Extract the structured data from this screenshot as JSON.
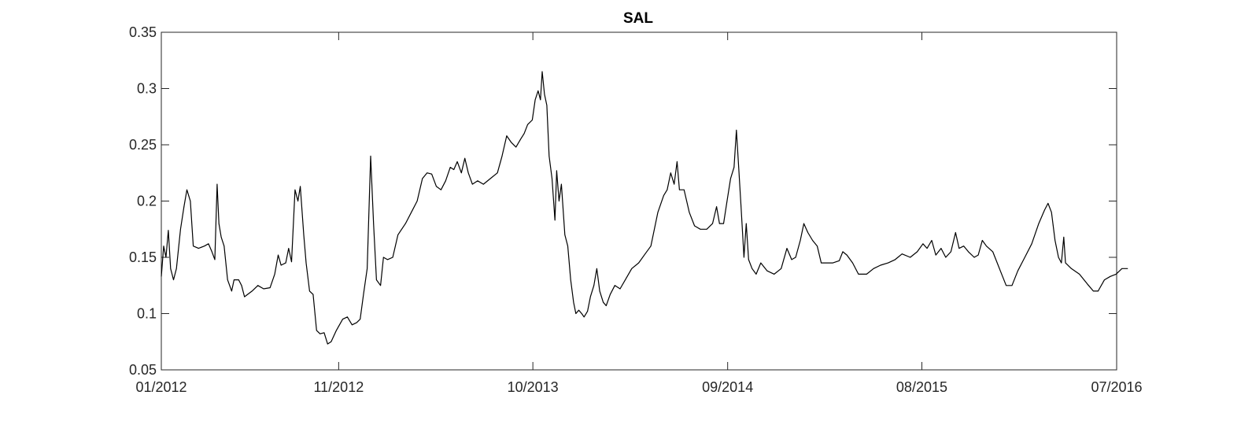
{
  "chart_data": {
    "type": "line",
    "title": "SAL",
    "xlabel": "",
    "ylabel": "",
    "x_tick_labels": [
      "01/2012",
      "11/2012",
      "10/2013",
      "09/2014",
      "08/2015",
      "07/2016"
    ],
    "x_tick_dates": [
      "2012-01",
      "2012-11",
      "2013-10",
      "2014-09",
      "2015-08",
      "2016-07"
    ],
    "xlim": [
      "2012-01",
      "2016-07"
    ],
    "y_tick_labels": [
      "0.05",
      "0.1",
      "0.15",
      "0.2",
      "0.25",
      "0.3",
      "0.35"
    ],
    "y_ticks": [
      0.05,
      0.1,
      0.15,
      0.2,
      0.25,
      0.3,
      0.35
    ],
    "ylim": [
      0.05,
      0.35
    ],
    "grid": false,
    "box": true,
    "colors": {
      "line": "#000000",
      "axes": "#262626"
    },
    "series": [
      {
        "name": "",
        "points": [
          [
            "2012-01-01",
            0.133
          ],
          [
            "2012-01-05",
            0.16
          ],
          [
            "2012-01-09",
            0.15
          ],
          [
            "2012-01-13",
            0.174
          ],
          [
            "2012-01-17",
            0.14
          ],
          [
            "2012-01-22",
            0.13
          ],
          [
            "2012-01-27",
            0.14
          ],
          [
            "2012-02-03",
            0.175
          ],
          [
            "2012-02-09",
            0.195
          ],
          [
            "2012-02-14",
            0.21
          ],
          [
            "2012-02-20",
            0.2
          ],
          [
            "2012-02-25",
            0.16
          ],
          [
            "2012-03-05",
            0.158
          ],
          [
            "2012-03-15",
            0.16
          ],
          [
            "2012-03-22",
            0.162
          ],
          [
            "2012-03-28",
            0.155
          ],
          [
            "2012-04-02",
            0.148
          ],
          [
            "2012-04-06",
            0.215
          ],
          [
            "2012-04-09",
            0.18
          ],
          [
            "2012-04-13",
            0.168
          ],
          [
            "2012-04-18",
            0.16
          ],
          [
            "2012-04-24",
            0.13
          ],
          [
            "2012-05-01",
            0.12
          ],
          [
            "2012-05-05",
            0.13
          ],
          [
            "2012-05-13",
            0.13
          ],
          [
            "2012-05-18",
            0.125
          ],
          [
            "2012-05-23",
            0.115
          ],
          [
            "2012-06-05",
            0.12
          ],
          [
            "2012-06-15",
            0.125
          ],
          [
            "2012-06-25",
            0.122
          ],
          [
            "2012-07-06",
            0.123
          ],
          [
            "2012-07-14",
            0.135
          ],
          [
            "2012-07-20",
            0.152
          ],
          [
            "2012-07-25",
            0.143
          ],
          [
            "2012-08-02",
            0.145
          ],
          [
            "2012-08-07",
            0.158
          ],
          [
            "2012-08-12",
            0.146
          ],
          [
            "2012-08-18",
            0.21
          ],
          [
            "2012-08-23",
            0.2
          ],
          [
            "2012-08-27",
            0.213
          ],
          [
            "2012-09-02",
            0.17
          ],
          [
            "2012-09-06",
            0.145
          ],
          [
            "2012-09-12",
            0.12
          ],
          [
            "2012-09-18",
            0.117
          ],
          [
            "2012-09-24",
            0.085
          ],
          [
            "2012-09-30",
            0.082
          ],
          [
            "2012-10-07",
            0.083
          ],
          [
            "2012-10-13",
            0.073
          ],
          [
            "2012-10-19",
            0.075
          ],
          [
            "2012-10-28",
            0.085
          ],
          [
            "2012-11-08",
            0.095
          ],
          [
            "2012-11-16",
            0.097
          ],
          [
            "2012-11-24",
            0.09
          ],
          [
            "2012-12-02",
            0.092
          ],
          [
            "2012-12-08",
            0.095
          ],
          [
            "2012-12-14",
            0.118
          ],
          [
            "2012-12-20",
            0.14
          ],
          [
            "2012-12-26",
            0.24
          ],
          [
            "2012-12-31",
            0.18
          ],
          [
            "2013-01-05",
            0.13
          ],
          [
            "2013-01-12",
            0.125
          ],
          [
            "2013-01-17",
            0.15
          ],
          [
            "2013-01-24",
            0.148
          ],
          [
            "2013-02-02",
            0.15
          ],
          [
            "2013-02-11",
            0.17
          ],
          [
            "2013-02-24",
            0.18
          ],
          [
            "2013-03-06",
            0.19
          ],
          [
            "2013-03-16",
            0.2
          ],
          [
            "2013-03-25",
            0.22
          ],
          [
            "2013-04-02",
            0.225
          ],
          [
            "2013-04-10",
            0.224
          ],
          [
            "2013-04-18",
            0.213
          ],
          [
            "2013-04-26",
            0.21
          ],
          [
            "2013-05-04",
            0.218
          ],
          [
            "2013-05-12",
            0.23
          ],
          [
            "2013-05-18",
            0.228
          ],
          [
            "2013-05-24",
            0.235
          ],
          [
            "2013-05-31",
            0.225
          ],
          [
            "2013-06-06",
            0.238
          ],
          [
            "2013-06-12",
            0.225
          ],
          [
            "2013-06-19",
            0.215
          ],
          [
            "2013-06-28",
            0.218
          ],
          [
            "2013-07-08",
            0.215
          ],
          [
            "2013-07-20",
            0.22
          ],
          [
            "2013-08-01",
            0.225
          ],
          [
            "2013-08-09",
            0.24
          ],
          [
            "2013-08-17",
            0.258
          ],
          [
            "2013-08-25",
            0.252
          ],
          [
            "2013-09-02",
            0.248
          ],
          [
            "2013-09-10",
            0.255
          ],
          [
            "2013-09-16",
            0.26
          ],
          [
            "2013-09-22",
            0.268
          ],
          [
            "2013-09-30",
            0.272
          ],
          [
            "2013-10-05",
            0.29
          ],
          [
            "2013-10-10",
            0.298
          ],
          [
            "2013-10-14",
            0.29
          ],
          [
            "2013-10-17",
            0.315
          ],
          [
            "2013-10-21",
            0.295
          ],
          [
            "2013-10-25",
            0.285
          ],
          [
            "2013-10-29",
            0.24
          ],
          [
            "2013-11-03",
            0.22
          ],
          [
            "2013-11-08",
            0.183
          ],
          [
            "2013-11-11",
            0.227
          ],
          [
            "2013-11-15",
            0.2
          ],
          [
            "2013-11-19",
            0.215
          ],
          [
            "2013-11-25",
            0.17
          ],
          [
            "2013-11-30",
            0.16
          ],
          [
            "2013-12-05",
            0.13
          ],
          [
            "2013-12-10",
            0.11
          ],
          [
            "2013-12-14",
            0.1
          ],
          [
            "2013-12-19",
            0.103
          ],
          [
            "2013-12-24",
            0.1
          ],
          [
            "2013-12-28",
            0.097
          ],
          [
            "2014-01-03",
            0.102
          ],
          [
            "2014-01-08",
            0.115
          ],
          [
            "2014-01-14",
            0.125
          ],
          [
            "2014-01-19",
            0.14
          ],
          [
            "2014-01-24",
            0.12
          ],
          [
            "2014-01-30",
            0.11
          ],
          [
            "2014-02-04",
            0.107
          ],
          [
            "2014-02-11",
            0.117
          ],
          [
            "2014-02-19",
            0.125
          ],
          [
            "2014-02-28",
            0.122
          ],
          [
            "2014-03-09",
            0.13
          ],
          [
            "2014-03-20",
            0.14
          ],
          [
            "2014-04-01",
            0.145
          ],
          [
            "2014-04-12",
            0.153
          ],
          [
            "2014-04-22",
            0.16
          ],
          [
            "2014-05-04",
            0.19
          ],
          [
            "2014-05-14",
            0.205
          ],
          [
            "2014-05-20",
            0.21
          ],
          [
            "2014-05-26",
            0.225
          ],
          [
            "2014-06-01",
            0.215
          ],
          [
            "2014-06-06",
            0.235
          ],
          [
            "2014-06-10",
            0.21
          ],
          [
            "2014-06-18",
            0.21
          ],
          [
            "2014-06-27",
            0.19
          ],
          [
            "2014-07-06",
            0.178
          ],
          [
            "2014-07-16",
            0.175
          ],
          [
            "2014-07-27",
            0.175
          ],
          [
            "2014-08-06",
            0.18
          ],
          [
            "2014-08-13",
            0.195
          ],
          [
            "2014-08-18",
            0.18
          ],
          [
            "2014-08-25",
            0.18
          ],
          [
            "2014-08-31",
            0.2
          ],
          [
            "2014-09-06",
            0.22
          ],
          [
            "2014-09-12",
            0.23
          ],
          [
            "2014-09-16",
            0.263
          ],
          [
            "2014-09-20",
            0.23
          ],
          [
            "2014-09-24",
            0.195
          ],
          [
            "2014-09-29",
            0.15
          ],
          [
            "2014-10-03",
            0.18
          ],
          [
            "2014-10-07",
            0.148
          ],
          [
            "2014-10-13",
            0.14
          ],
          [
            "2014-10-20",
            0.135
          ],
          [
            "2014-10-28",
            0.145
          ],
          [
            "2014-11-08",
            0.138
          ],
          [
            "2014-11-20",
            0.135
          ],
          [
            "2014-12-02",
            0.14
          ],
          [
            "2014-12-12",
            0.158
          ],
          [
            "2014-12-20",
            0.148
          ],
          [
            "2014-12-27",
            0.15
          ],
          [
            "2015-01-04",
            0.165
          ],
          [
            "2015-01-10",
            0.18
          ],
          [
            "2015-01-17",
            0.172
          ],
          [
            "2015-01-25",
            0.165
          ],
          [
            "2015-02-02",
            0.16
          ],
          [
            "2015-02-09",
            0.145
          ],
          [
            "2015-02-18",
            0.145
          ],
          [
            "2015-03-01",
            0.145
          ],
          [
            "2015-03-12",
            0.147
          ],
          [
            "2015-03-18",
            0.155
          ],
          [
            "2015-03-25",
            0.152
          ],
          [
            "2015-04-04",
            0.145
          ],
          [
            "2015-04-14",
            0.135
          ],
          [
            "2015-04-28",
            0.135
          ],
          [
            "2015-05-10",
            0.14
          ],
          [
            "2015-05-22",
            0.143
          ],
          [
            "2015-06-04",
            0.145
          ],
          [
            "2015-06-16",
            0.148
          ],
          [
            "2015-06-28",
            0.153
          ],
          [
            "2015-07-12",
            0.15
          ],
          [
            "2015-07-24",
            0.155
          ],
          [
            "2015-08-03",
            0.162
          ],
          [
            "2015-08-10",
            0.158
          ],
          [
            "2015-08-18",
            0.165
          ],
          [
            "2015-08-25",
            0.152
          ],
          [
            "2015-09-03",
            0.158
          ],
          [
            "2015-09-11",
            0.15
          ],
          [
            "2015-09-20",
            0.155
          ],
          [
            "2015-09-28",
            0.172
          ],
          [
            "2015-10-04",
            0.158
          ],
          [
            "2015-10-12",
            0.16
          ],
          [
            "2015-10-20",
            0.155
          ],
          [
            "2015-10-30",
            0.15
          ],
          [
            "2015-11-06",
            0.152
          ],
          [
            "2015-11-13",
            0.165
          ],
          [
            "2015-11-20",
            0.16
          ],
          [
            "2015-12-01",
            0.155
          ],
          [
            "2015-12-14",
            0.138
          ],
          [
            "2015-12-24",
            0.125
          ],
          [
            "2016-01-03",
            0.125
          ],
          [
            "2016-01-13",
            0.138
          ],
          [
            "2016-01-25",
            0.15
          ],
          [
            "2016-02-06",
            0.162
          ],
          [
            "2016-02-18",
            0.18
          ],
          [
            "2016-02-28",
            0.192
          ],
          [
            "2016-03-05",
            0.198
          ],
          [
            "2016-03-11",
            0.19
          ],
          [
            "2016-03-17",
            0.165
          ],
          [
            "2016-03-23",
            0.15
          ],
          [
            "2016-03-28",
            0.145
          ],
          [
            "2016-04-01",
            0.168
          ],
          [
            "2016-04-04",
            0.145
          ],
          [
            "2016-04-14",
            0.14
          ],
          [
            "2016-04-28",
            0.135
          ],
          [
            "2016-05-12",
            0.126
          ],
          [
            "2016-05-22",
            0.12
          ],
          [
            "2016-05-30",
            0.12
          ],
          [
            "2016-06-10",
            0.13
          ],
          [
            "2016-06-20",
            0.133
          ],
          [
            "2016-06-30",
            0.135
          ],
          [
            "2016-07-10",
            0.14
          ],
          [
            "2016-07-20",
            0.14
          ]
        ]
      }
    ]
  }
}
